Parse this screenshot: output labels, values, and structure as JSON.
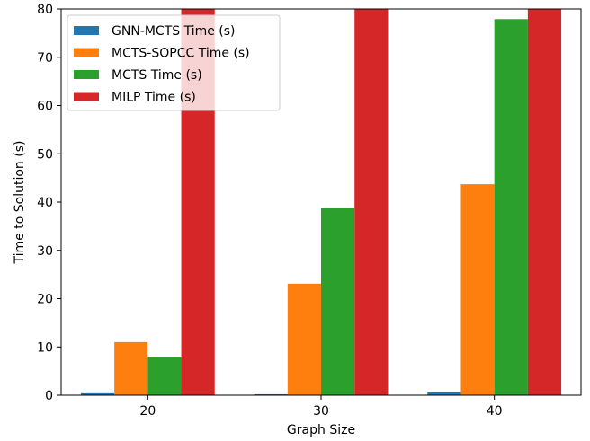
{
  "chart_data": {
    "type": "bar",
    "xlabel": "Graph Size",
    "ylabel": "Time to Solution (s)",
    "categories": [
      "20",
      "30",
      "40"
    ],
    "ylim": [
      0,
      80
    ],
    "yticks": [
      0,
      10,
      20,
      30,
      40,
      50,
      60,
      70,
      80
    ],
    "legend_position": "top-left",
    "grid": false,
    "series": [
      {
        "name": "GNN-MCTS Time (s)",
        "color": "#1f77b4",
        "values": [
          0.4,
          0.2,
          0.6
        ]
      },
      {
        "name": "MCTS-SOPCC Time (s)",
        "color": "#ff7f0e",
        "values": [
          11.0,
          23.1,
          43.7
        ]
      },
      {
        "name": "MCTS Time (s)",
        "color": "#2ca02c",
        "values": [
          8.0,
          38.7,
          77.9
        ]
      },
      {
        "name": "MILP Time (s)",
        "color": "#d62728",
        "values": [
          80,
          80,
          80
        ]
      }
    ]
  }
}
